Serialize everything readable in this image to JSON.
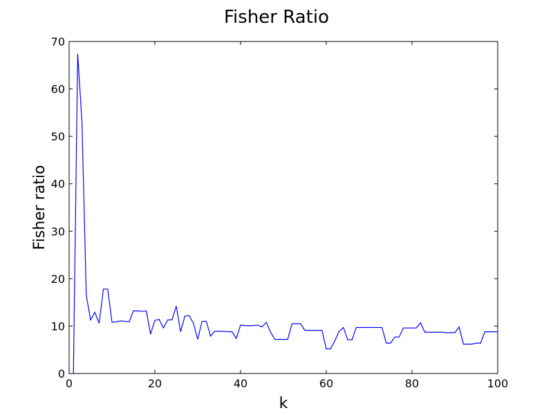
{
  "chart_data": {
    "type": "line",
    "title": "Fisher Ratio",
    "xlabel": "k",
    "ylabel": "Fisher ratio",
    "xlim": [
      0,
      100
    ],
    "ylim": [
      0,
      70
    ],
    "xticks": [
      "0",
      "20",
      "40",
      "60",
      "80",
      "100"
    ],
    "yticks": [
      "0",
      "10",
      "20",
      "30",
      "40",
      "50",
      "60",
      "70"
    ],
    "grid": false,
    "legend": "none",
    "series": [
      {
        "color": "#0000ff",
        "x": [
          1,
          2,
          3,
          4,
          5,
          6,
          7,
          8,
          9,
          10,
          11,
          12,
          13,
          14,
          15,
          16,
          17,
          18,
          19,
          20,
          21,
          22,
          23,
          24,
          25,
          26,
          27,
          28,
          29,
          30,
          31,
          32,
          33,
          34,
          35,
          36,
          37,
          38,
          39,
          40,
          41,
          42,
          43,
          44,
          45,
          46,
          47,
          48,
          49,
          50,
          51,
          52,
          53,
          54,
          55,
          56,
          57,
          58,
          59,
          60,
          61,
          62,
          63,
          64,
          65,
          66,
          67,
          68,
          69,
          70,
          71,
          72,
          73,
          74,
          75,
          76,
          77,
          78,
          79,
          80,
          81,
          82,
          83,
          84,
          85,
          86,
          87,
          88,
          89,
          90,
          91,
          92,
          93,
          94,
          95,
          96,
          97,
          98,
          99,
          100
        ],
        "y": [
          0,
          67.4,
          53.0,
          16.5,
          11.3,
          12.9,
          10.6,
          17.8,
          17.8,
          10.8,
          10.9,
          11.1,
          11.0,
          10.9,
          13.2,
          13.2,
          13.1,
          13.2,
          8.3,
          11.2,
          11.4,
          9.6,
          11.3,
          11.3,
          14.2,
          8.8,
          12.1,
          12.2,
          10.6,
          7.2,
          11.0,
          11.0,
          7.9,
          8.9,
          8.9,
          8.9,
          8.8,
          8.8,
          7.4,
          10.2,
          10.1,
          10.1,
          10.1,
          10.2,
          9.8,
          10.8,
          8.7,
          7.2,
          7.2,
          7.2,
          7.2,
          10.5,
          10.5,
          10.5,
          9.1,
          9.1,
          9.1,
          9.1,
          9.1,
          5.2,
          5.2,
          6.9,
          8.9,
          9.7,
          7.1,
          7.1,
          9.7,
          9.7,
          9.7,
          9.7,
          9.7,
          9.7,
          9.7,
          6.4,
          6.4,
          7.7,
          7.7,
          9.6,
          9.6,
          9.6,
          9.6,
          10.7,
          8.7,
          8.7,
          8.7,
          8.7,
          8.7,
          8.6,
          8.6,
          8.6,
          9.8,
          6.2,
          6.2,
          6.2,
          6.4,
          6.4,
          8.8,
          8.8,
          8.8,
          8.8
        ]
      }
    ]
  }
}
